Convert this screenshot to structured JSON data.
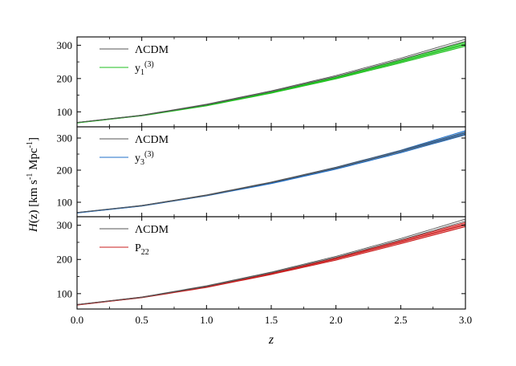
{
  "chart_data": [
    {
      "type": "line",
      "xlabel": "",
      "ylabel": "",
      "xlim": [
        0,
        3
      ],
      "ylim": [
        55,
        325
      ],
      "yticks": [
        "100",
        "200",
        "300"
      ],
      "series": [
        {
          "name": "ΛCDM",
          "color": "#555555",
          "x": [
            0,
            0.5,
            1,
            1.5,
            2,
            2.5,
            3
          ],
          "lower": [
            68,
            89,
            121,
            161,
            206,
            257,
            312
          ],
          "upper": [
            68,
            90,
            123,
            163,
            209,
            261,
            318
          ]
        },
        {
          "name": "y",
          "sub": "1",
          "sup": "(3)",
          "color": "#1fbf1f",
          "band_color": "#6fe06f",
          "x": [
            0,
            0.5,
            1,
            1.5,
            2,
            2.5,
            3
          ],
          "lower": [
            67,
            88,
            118,
            156,
            199,
            247,
            297
          ],
          "center": [
            67,
            89,
            120,
            158,
            202,
            251,
            303
          ],
          "upper": [
            68,
            90,
            121,
            160,
            205,
            255,
            309
          ]
        }
      ]
    },
    {
      "type": "line",
      "xlabel": "",
      "ylabel": "H(z) [km s-1 Mpc-1]",
      "ylabel_parts": {
        "h": "H",
        "arg": "(z) [km s",
        "sup1": "-1",
        "mid": " Mpc",
        "sup2": "-1",
        "end": "]"
      },
      "xlim": [
        0,
        3
      ],
      "ylim": [
        55,
        335
      ],
      "yticks": [
        "100",
        "200",
        "300"
      ],
      "series": [
        {
          "name": "ΛCDM",
          "color": "#555555",
          "x": [
            0,
            0.5,
            1,
            1.5,
            2,
            2.5,
            3
          ],
          "lower": [
            68,
            89,
            121,
            161,
            206,
            257,
            312
          ],
          "upper": [
            68,
            90,
            123,
            163,
            209,
            261,
            318
          ]
        },
        {
          "name": "y",
          "sub": "3",
          "sup": "(3)",
          "color": "#1f6fc8",
          "band_color": "#7fb8ee",
          "x": [
            0,
            0.5,
            1,
            1.5,
            2,
            2.5,
            3
          ],
          "lower": [
            67,
            88,
            120,
            158,
            203,
            254,
            310
          ],
          "center": [
            67,
            89,
            121,
            160,
            206,
            258,
            316
          ],
          "upper": [
            68,
            90,
            122,
            162,
            209,
            262,
            323
          ]
        }
      ]
    },
    {
      "type": "line",
      "xlabel": "z",
      "ylabel": "",
      "xlim": [
        0,
        3
      ],
      "ylim": [
        55,
        325
      ],
      "yticks": [
        "100",
        "200",
        "300"
      ],
      "xticks": [
        "0.0",
        "0.5",
        "1.0",
        "1.5",
        "2.0",
        "2.5",
        "3.0"
      ],
      "series": [
        {
          "name": "ΛCDM",
          "color": "#555555",
          "x": [
            0,
            0.5,
            1,
            1.5,
            2,
            2.5,
            3
          ],
          "lower": [
            68,
            89,
            121,
            161,
            206,
            257,
            312
          ],
          "upper": [
            68,
            90,
            123,
            163,
            209,
            261,
            318
          ]
        },
        {
          "name": "P",
          "sub": "22",
          "sup": "",
          "color": "#c81e1e",
          "band_color": "#f07d7d",
          "x": [
            0,
            0.5,
            1,
            1.5,
            2,
            2.5,
            3
          ],
          "lower": [
            67,
            88,
            118,
            156,
            198,
            246,
            296
          ],
          "center": [
            67,
            89,
            120,
            158,
            202,
            251,
            302
          ],
          "upper": [
            68,
            90,
            121,
            160,
            205,
            255,
            308
          ]
        }
      ]
    }
  ]
}
